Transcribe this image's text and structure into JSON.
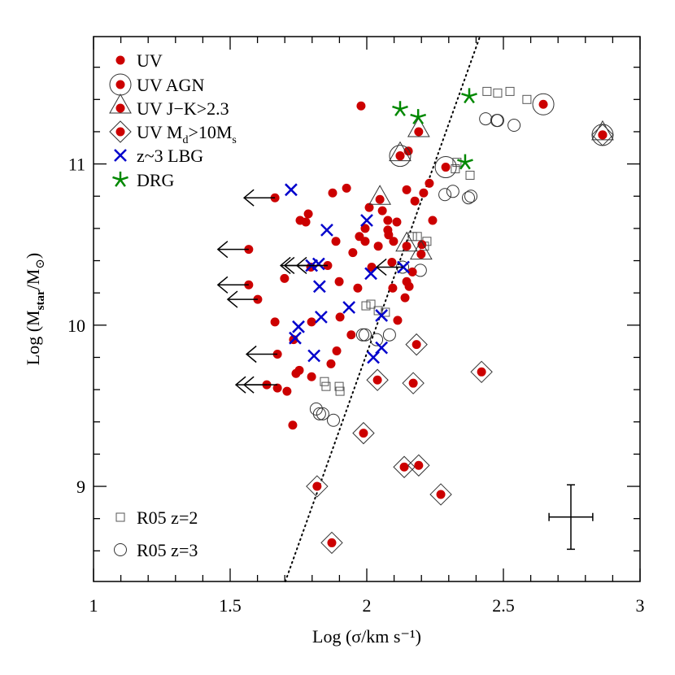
{
  "chart_data": {
    "type": "scatter",
    "xlabel": "Log (σ/km s⁻¹)",
    "ylabel_parts": [
      {
        "text": "Log (M"
      },
      {
        "text": "star",
        "sub": true
      },
      {
        "text": "/M"
      },
      {
        "text": "⊙",
        "sub": true
      },
      {
        "text": ")"
      }
    ],
    "xlim": [
      1,
      3
    ],
    "ylim": [
      8.41,
      11.79
    ],
    "x_ticks": [
      "1",
      "1.5",
      "2",
      "2.5",
      "3"
    ],
    "y_ticks": [
      "9",
      "10",
      "11"
    ],
    "grid": false,
    "legend_placement": "top-left",
    "colors": {
      "uv": "#cc0000",
      "lbg": "#0000cc",
      "drg": "#008800",
      "r05": "#555555",
      "axis": "#000000"
    },
    "legend": [
      {
        "key": "uv",
        "parts": [
          {
            "text": "UV"
          }
        ]
      },
      {
        "key": "uv_agn",
        "parts": [
          {
            "text": "UV  AGN"
          }
        ]
      },
      {
        "key": "uv_jk",
        "parts": [
          {
            "text": "UV  J−K>2.3"
          }
        ]
      },
      {
        "key": "uv_md",
        "parts": [
          {
            "text": "UV  M"
          },
          {
            "text": "d",
            "sub": true
          },
          {
            "text": ">10M"
          },
          {
            "text": "s",
            "sub": true
          }
        ]
      },
      {
        "key": "lbg",
        "parts": [
          {
            "text": "z~3  LBG"
          }
        ]
      },
      {
        "key": "drg",
        "parts": [
          {
            "text": "DRG"
          }
        ]
      }
    ],
    "legend_bottom": [
      {
        "key": "r05_z2",
        "parts": [
          {
            "text": "R05  z=2"
          }
        ]
      },
      {
        "key": "r05_z3",
        "parts": [
          {
            "text": "R05  z=3"
          }
        ]
      }
    ],
    "series": {
      "uv": [
        [
          1.664,
          10.79
        ],
        [
          1.875,
          10.82
        ],
        [
          1.926,
          10.85
        ],
        [
          1.786,
          10.69
        ],
        [
          1.756,
          10.65
        ],
        [
          1.777,
          10.64
        ],
        [
          2.009,
          10.73
        ],
        [
          2.057,
          10.71
        ],
        [
          1.994,
          10.6
        ],
        [
          1.973,
          10.55
        ],
        [
          1.994,
          10.52
        ],
        [
          2.077,
          10.65
        ],
        [
          2.11,
          10.64
        ],
        [
          2.077,
          10.59
        ],
        [
          2.08,
          10.56
        ],
        [
          2.098,
          10.52
        ],
        [
          2.042,
          10.49
        ],
        [
          1.887,
          10.52
        ],
        [
          2.146,
          10.84
        ],
        [
          2.176,
          10.77
        ],
        [
          2.208,
          10.82
        ],
        [
          2.229,
          10.88
        ],
        [
          2.241,
          10.65
        ],
        [
          2.202,
          10.5
        ],
        [
          1.568,
          10.47
        ],
        [
          1.949,
          10.45
        ],
        [
          1.857,
          10.37
        ],
        [
          1.795,
          10.36
        ],
        [
          1.699,
          10.29
        ],
        [
          2.018,
          10.36
        ],
        [
          2.092,
          10.39
        ],
        [
          2.167,
          10.33
        ],
        [
          2.146,
          10.27
        ],
        [
          2.155,
          10.24
        ],
        [
          1.568,
          10.25
        ],
        [
          1.601,
          10.16
        ],
        [
          1.899,
          10.27
        ],
        [
          1.967,
          10.23
        ],
        [
          2.095,
          10.23
        ],
        [
          2.14,
          10.17
        ],
        [
          1.664,
          10.02
        ],
        [
          1.798,
          10.02
        ],
        [
          1.902,
          10.05
        ],
        [
          2.113,
          10.03
        ],
        [
          1.943,
          9.94
        ],
        [
          1.732,
          9.91
        ],
        [
          1.673,
          9.82
        ],
        [
          1.89,
          9.84
        ],
        [
          1.869,
          9.76
        ],
        [
          1.753,
          9.72
        ],
        [
          1.741,
          9.7
        ],
        [
          1.798,
          9.68
        ],
        [
          1.634,
          9.63
        ],
        [
          1.673,
          9.61
        ],
        [
          1.708,
          9.59
        ],
        [
          1.729,
          9.38
        ],
        [
          1.979,
          11.36
        ],
        [
          2.152,
          11.08
        ]
      ],
      "uv_agn": [
        [
          2.122,
          11.05
        ],
        [
          2.289,
          10.98
        ],
        [
          2.646,
          11.37
        ],
        [
          2.863,
          11.18
        ]
      ],
      "uv_jk": [
        [
          2.048,
          10.78
        ],
        [
          2.19,
          11.2
        ],
        [
          2.122,
          11.05
        ],
        [
          2.146,
          10.49
        ],
        [
          2.199,
          10.44
        ],
        [
          2.863,
          11.18
        ]
      ],
      "uv_md": [
        [
          2.182,
          9.88
        ],
        [
          2.039,
          9.66
        ],
        [
          2.17,
          9.64
        ],
        [
          2.42,
          9.71
        ],
        [
          1.988,
          9.33
        ],
        [
          2.137,
          9.12
        ],
        [
          2.19,
          9.13
        ],
        [
          2.271,
          8.95
        ],
        [
          1.818,
          9.0
        ],
        [
          1.872,
          8.65
        ],
        [
          2.863,
          11.18
        ]
      ],
      "lbg": [
        [
          1.723,
          10.84
        ],
        [
          1.854,
          10.59
        ],
        [
          2.0,
          10.65
        ],
        [
          1.798,
          10.37
        ],
        [
          1.824,
          10.38
        ],
        [
          2.015,
          10.32
        ],
        [
          2.134,
          10.36
        ],
        [
          1.827,
          10.24
        ],
        [
          1.935,
          10.11
        ],
        [
          1.833,
          10.05
        ],
        [
          1.75,
          9.99
        ],
        [
          1.738,
          9.92
        ],
        [
          2.054,
          10.06
        ],
        [
          1.807,
          9.81
        ],
        [
          2.054,
          9.86
        ],
        [
          2.024,
          9.8
        ]
      ],
      "drg": [
        [
          2.122,
          11.34
        ],
        [
          2.188,
          11.29
        ],
        [
          2.375,
          11.42
        ],
        [
          2.36,
          11.01
        ]
      ],
      "r05_z2": [
        [
          2.44,
          11.45
        ],
        [
          2.479,
          11.44
        ],
        [
          2.524,
          11.45
        ],
        [
          2.586,
          11.4
        ],
        [
          2.33,
          11.01
        ],
        [
          2.324,
          10.97
        ],
        [
          2.378,
          10.93
        ],
        [
          2.167,
          10.55
        ],
        [
          2.185,
          10.55
        ],
        [
          2.22,
          10.52
        ],
        [
          2.211,
          10.49
        ],
        [
          1.845,
          9.65
        ],
        [
          1.851,
          9.62
        ],
        [
          1.899,
          9.62
        ],
        [
          1.902,
          9.59
        ],
        [
          1.997,
          10.12
        ],
        [
          2.015,
          10.13
        ],
        [
          2.042,
          10.09
        ],
        [
          2.068,
          10.08
        ]
      ],
      "r05_z3": [
        [
          2.435,
          11.28
        ],
        [
          2.476,
          11.27
        ],
        [
          2.479,
          11.27
        ],
        [
          2.539,
          11.24
        ],
        [
          2.286,
          10.81
        ],
        [
          2.315,
          10.83
        ],
        [
          2.372,
          10.79
        ],
        [
          2.381,
          10.8
        ],
        [
          2.196,
          10.34
        ],
        [
          2.131,
          10.36
        ],
        [
          1.985,
          9.94
        ],
        [
          1.994,
          9.94
        ],
        [
          2.036,
          9.91
        ],
        [
          2.083,
          9.94
        ],
        [
          1.815,
          9.48
        ],
        [
          1.827,
          9.45
        ],
        [
          1.839,
          9.45
        ],
        [
          1.878,
          9.41
        ]
      ]
    },
    "upper_limits": [
      {
        "x": 1.664,
        "x_to": 1.551,
        "y": 10.79
      },
      {
        "x": 1.568,
        "x_to": 1.455,
        "y": 10.47
      },
      {
        "x": 1.568,
        "x_to": 1.455,
        "y": 10.25
      },
      {
        "x": 1.601,
        "x_to": 1.491,
        "y": 10.16
      },
      {
        "x": 1.673,
        "x_to": 1.56,
        "y": 9.82
      },
      {
        "x": 1.634,
        "x_to": 1.521,
        "y": 9.63
      },
      {
        "x": 1.673,
        "x_to": 1.551,
        "y": 9.63
      },
      {
        "x": 1.795,
        "x_to": 1.685,
        "y": 10.37
      },
      {
        "x": 1.857,
        "x_to": 1.699,
        "y": 10.37
      },
      {
        "x": 1.857,
        "x_to": 1.744,
        "y": 10.37
      },
      {
        "x": 2.134,
        "x_to": 2.036,
        "y": 10.36
      }
    ],
    "relation_line": {
      "x": [
        1.702,
        2.414
      ],
      "y": [
        8.41,
        11.79
      ],
      "style": "dotted"
    },
    "typical_error": {
      "x": 2.747,
      "y": 8.81,
      "x_err": 0.08,
      "y_err": 0.2
    }
  }
}
